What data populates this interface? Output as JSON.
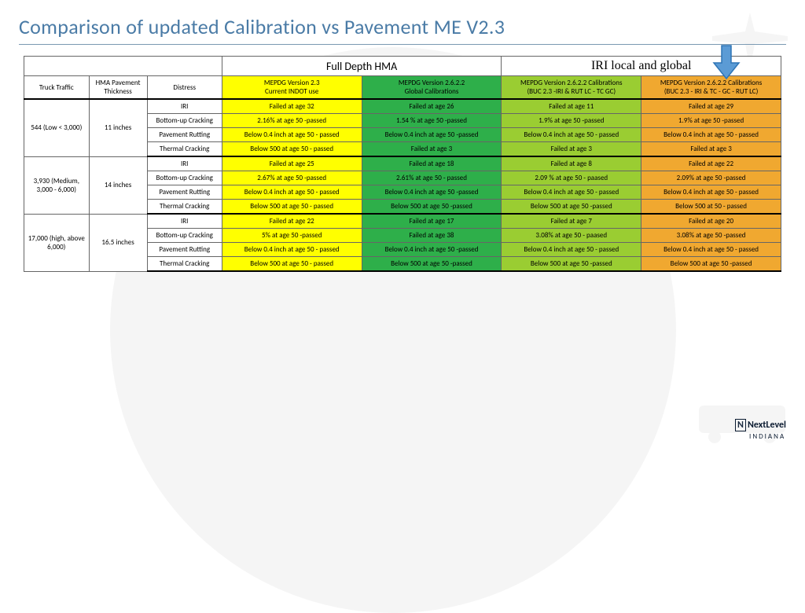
{
  "title": "Comparison of updated Calibration vs Pavement ME V2.3",
  "top_labels": {
    "full_depth": "Full Depth HMA",
    "iri": "IRI local and global"
  },
  "columns": {
    "c0": "Truck Traffic",
    "c1": "HMA Pavement Thickness",
    "c2": "Distress",
    "c3": "MEPDG Version 2.3\nCurrent INDOT use",
    "c4": "MEPDG Version 2.6.2.2\nGlobal Calibrations",
    "c5": "MEPDG Version 2.6.2.2 Calibrations\n(BUC 2.3 -IRI & RUT LC - TC GC)",
    "c6": "MEPDG Version 2.6.2.2  Calibrations\n(BUC 2.3 - IRI & TC - GC - RUT LC)"
  },
  "colors": {
    "yellow": "#ffff00",
    "green_dark": "#2eaf4a",
    "green_light": "#9acd32",
    "orange": "#f0a830",
    "arrow_fill": "#5b9bd5",
    "arrow_stroke": "#2e75b6"
  },
  "groups": [
    {
      "traffic": "544 (Low < 3,000)",
      "thickness": "11 inches",
      "rows": [
        {
          "distress": "IRI",
          "c3": "Failed at age 32",
          "c4": "Failed at age 26",
          "c5": "Failed at age 11",
          "c6": "Failed at age 29"
        },
        {
          "distress": "Bottom-up Cracking",
          "c3": "2.16% at age 50 -passed",
          "c4": "1.54 % at age 50 -passed",
          "c5": "1.9% at age 50 -passed",
          "c6": "1.9% at age 50 -passed"
        },
        {
          "distress": "Pavement Rutting",
          "c3": "Below 0.4 inch at age 50 - passed",
          "c4": "Below 0.4 inch at  age 50 -passed",
          "c5": "Below 0.4 inch at age 50 - passed",
          "c6": "Below 0.4 inch at age 50 - passed"
        },
        {
          "distress": "Thermal Cracking",
          "c3": "Below 500 at age 50 - passed",
          "c4": "Failed at age 3",
          "c5": "Failed at age 3",
          "c6": "Failed at age 3"
        }
      ]
    },
    {
      "traffic": "3,930 (Medium, 3,000 - 6,000)",
      "thickness": "14 inches",
      "rows": [
        {
          "distress": "IRI",
          "c3": "Failed at age 25",
          "c4": "Failed at age 18",
          "c5": "Failed at age 8",
          "c6": "Failed at age 22"
        },
        {
          "distress": "Bottom-up Cracking",
          "c3": "2.67% at age 50 -passed",
          "c4": "2.61% at age 50 - passed",
          "c5": "2.09 % at age 50 - paased",
          "c6": "2.09% at age 50 -passed"
        },
        {
          "distress": "Pavement Rutting",
          "c3": "Below 0.4 inch at age 50 - passed",
          "c4": "Below 0.4 inch at  age 50 -passed",
          "c5": "Below 0.4 inch at age 50 - passed",
          "c6": "Below 0.4 inch at age 50 - passed"
        },
        {
          "distress": "Thermal Cracking",
          "c3": "Below 500 at age 50 - passed",
          "c4": "Below 500 at age 50 -passed",
          "c5": "Below 500 at age 50 -passed",
          "c6": "Below 500 at 50 - passed"
        }
      ]
    },
    {
      "traffic": "17,000 (high, above 6,000)",
      "thickness": "16.5 inches",
      "rows": [
        {
          "distress": "IRI",
          "c3": "Failed at age 22",
          "c4": "Failed at age 17",
          "c5": "Failed at age 7",
          "c6": "Failed at age 20"
        },
        {
          "distress": "Bottom-up Cracking",
          "c3": "5% at age 50 -passed",
          "c4": "Failed at age 38",
          "c5": "3.08% at age 50 - paased",
          "c6": "3.08% at age 50 -passed"
        },
        {
          "distress": "Pavement Rutting",
          "c3": "Below 0.4 inch at age 50 - passed",
          "c4": "Below 0.4 inch at  age 50 -passed",
          "c5": "Below 0.4 inch at age 50 - passed",
          "c6": "Below 0.4 inch at age 50 - passed"
        },
        {
          "distress": "Thermal Cracking",
          "c3": "Below 500 at age 50 - passed",
          "c4": "Below 500 at age 50 -passed",
          "c5": "Below 500 at age 50 -passed",
          "c6": "Below 500 at age 50 -passed"
        }
      ]
    }
  ],
  "footer": {
    "brand_n": "N",
    "brand_next": "NextLevel",
    "brand_ind": "INDIANA"
  }
}
